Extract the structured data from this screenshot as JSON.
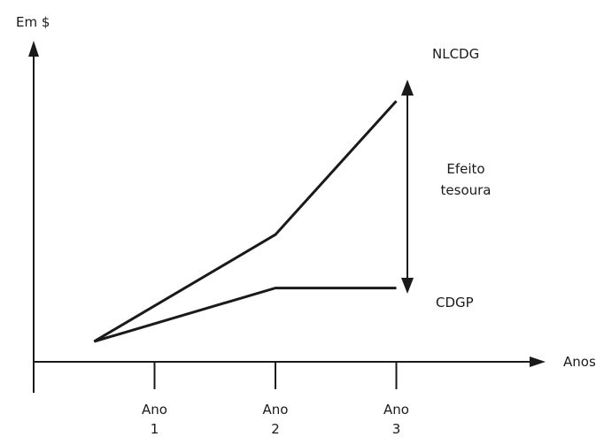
{
  "chart_data": {
    "type": "line",
    "ylabel": "Em $",
    "xlabel": "Anos",
    "categories": [
      {
        "line1": "Ano",
        "line2": "1"
      },
      {
        "line1": "Ano",
        "line2": "2"
      },
      {
        "line1": "Ano",
        "line2": "3"
      }
    ],
    "series": [
      {
        "name": "NLCDG",
        "points": [
          [
            0.5,
            1
          ],
          [
            2,
            5
          ],
          [
            3,
            10
          ]
        ]
      },
      {
        "name": "CDGP",
        "points": [
          [
            0.5,
            1
          ],
          [
            2,
            3
          ],
          [
            3,
            3
          ]
        ]
      }
    ],
    "annotation": {
      "line1": "Efeito",
      "line2": "tesoura"
    },
    "grid": false
  }
}
